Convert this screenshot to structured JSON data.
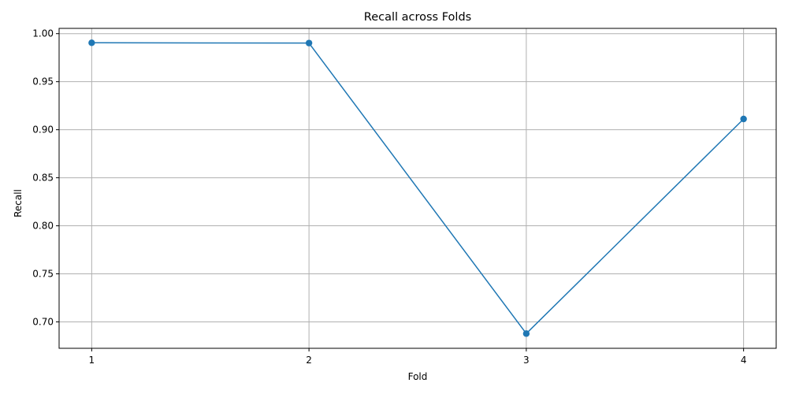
{
  "chart_data": {
    "type": "line",
    "title": "Recall across Folds",
    "xlabel": "Fold",
    "ylabel": "Recall",
    "x": [
      1,
      2,
      3,
      4
    ],
    "x_tick_labels": [
      "1",
      "2",
      "3",
      "4"
    ],
    "y_tick_labels": [
      "0.70",
      "0.75",
      "0.80",
      "0.85",
      "0.90",
      "0.95",
      "1.00"
    ],
    "y_ticks": [
      0.7,
      0.75,
      0.8,
      0.85,
      0.9,
      0.95,
      1.0
    ],
    "xlim": [
      0.85,
      4.15
    ],
    "ylim": [
      0.6725,
      1.0055
    ],
    "grid": true,
    "series": [
      {
        "values": [
          0.9905,
          0.9902,
          0.6878,
          0.9112
        ],
        "color": "#1f77b4",
        "marker": "circle"
      }
    ]
  },
  "colors": {
    "line": "#1f77b4",
    "grid": "#b0b0b0",
    "axis": "#000000",
    "background": "#ffffff"
  }
}
